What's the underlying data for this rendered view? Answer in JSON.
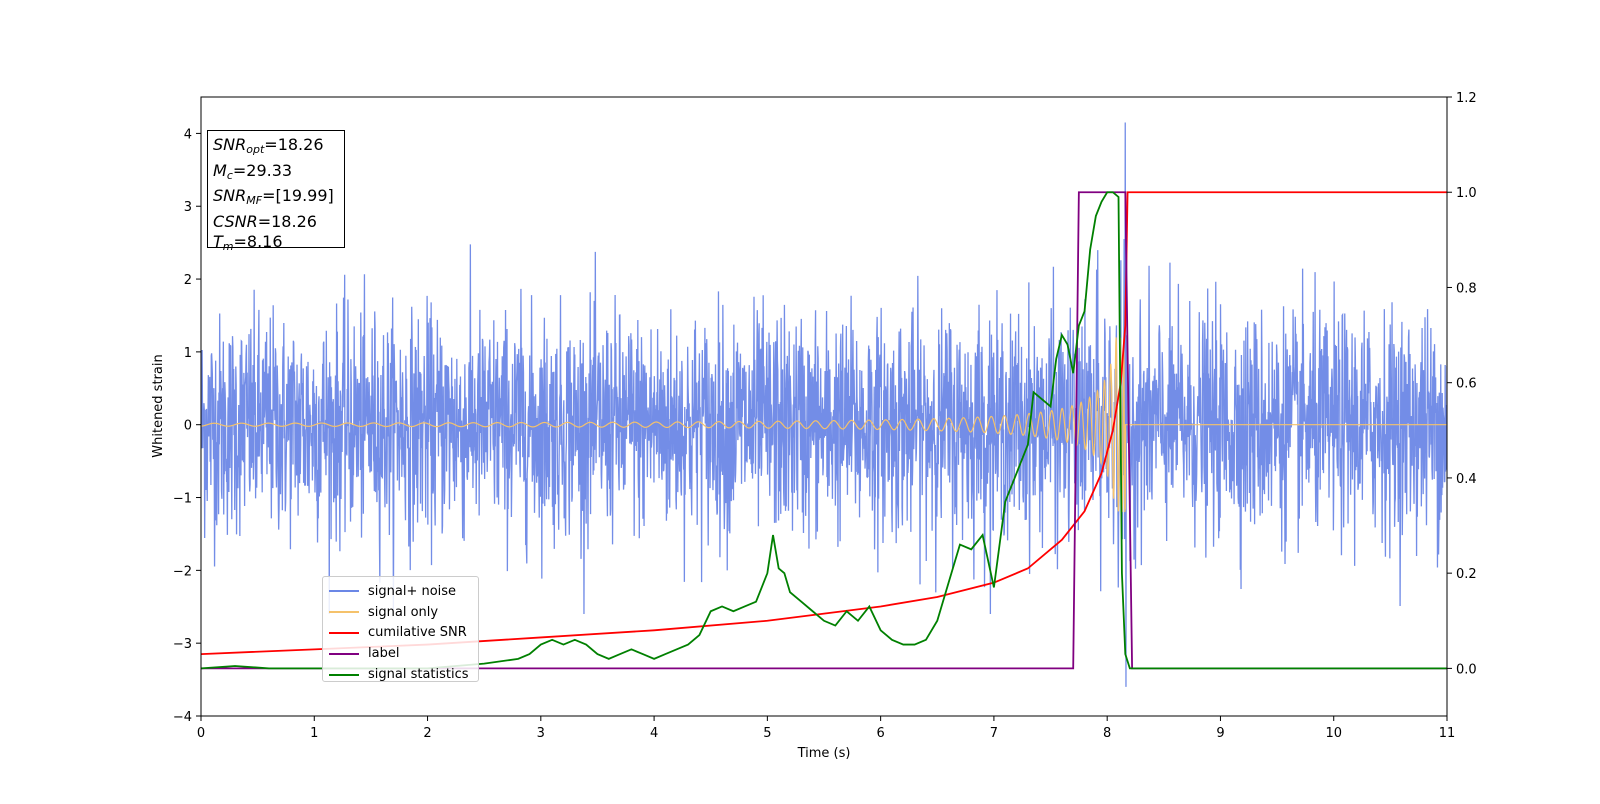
{
  "chart_data": {
    "type": "line",
    "title": "",
    "xlabel": "Time (s)",
    "ylabel": "Whitened strain",
    "xlim": [
      0,
      11
    ],
    "ylim": [
      -4,
      4.5
    ],
    "y2lim": [
      -0.1,
      1.2
    ],
    "xticks": [
      "0",
      "1",
      "2",
      "3",
      "4",
      "5",
      "6",
      "7",
      "8",
      "9",
      "10",
      "11"
    ],
    "yticks": [
      "−4",
      "−3",
      "−2",
      "−1",
      "0",
      "1",
      "2",
      "3",
      "4"
    ],
    "y2ticks": [
      "0.0",
      "0.2",
      "0.4",
      "0.6",
      "0.8",
      "1.0",
      "1.2"
    ],
    "grid": false,
    "legend_position": "lower-left",
    "annotation_box": {
      "snr_opt": {
        "sym": "SNR",
        "sub": "opt",
        "text": "=18.26"
      },
      "mc": {
        "sym": "M",
        "sub": "c",
        "text": "=29.33"
      },
      "snr_mf": {
        "sym": "SNR",
        "sub": "MF",
        "text": "=[19.99]"
      },
      "csnr": {
        "sym": "CSNR",
        "text": "=18.26"
      },
      "tm": {
        "sym": "T",
        "sub": "m",
        "text": "=8.16"
      }
    },
    "series": [
      {
        "name": "signal+ noise",
        "axis": "left",
        "color": "#6b87e6",
        "description_values": {
          "amplitude_envelope": [
            -2.5,
            2.5
          ],
          "spike_max": 4.15,
          "spike_min": -3.6,
          "spike_time": 8.16
        }
      },
      {
        "name": "signal only",
        "axis": "left",
        "color": "#f5c26b",
        "chirp": {
          "t_start": 0,
          "t_merger": 8.16,
          "amp_start": 0.02,
          "amp_peak": 1.2
        }
      },
      {
        "name": "cumilative SNR",
        "axis": "right",
        "color": "#ff0000",
        "x": [
          0,
          1,
          2,
          3,
          4,
          5,
          5.5,
          6,
          6.5,
          7,
          7.3,
          7.6,
          7.8,
          7.95,
          8.05,
          8.12,
          8.16,
          8.18,
          11
        ],
        "y": [
          0.03,
          0.04,
          0.05,
          0.065,
          0.08,
          0.1,
          0.115,
          0.13,
          0.15,
          0.18,
          0.21,
          0.27,
          0.33,
          0.41,
          0.5,
          0.6,
          0.72,
          1.0,
          1.0
        ]
      },
      {
        "name": "label",
        "axis": "right",
        "color": "#800080",
        "x": [
          0,
          7.7,
          7.75,
          8.16,
          8.22,
          11
        ],
        "y": [
          0,
          0,
          1,
          1,
          0,
          0
        ]
      },
      {
        "name": "signal statistics",
        "axis": "right",
        "color": "#008000",
        "x": [
          0,
          0.3,
          0.6,
          1,
          1.5,
          2,
          2.5,
          2.8,
          2.9,
          3.0,
          3.1,
          3.2,
          3.3,
          3.4,
          3.5,
          3.6,
          3.7,
          3.8,
          3.9,
          4.0,
          4.1,
          4.2,
          4.3,
          4.4,
          4.5,
          4.6,
          4.7,
          4.8,
          4.9,
          5.0,
          5.05,
          5.1,
          5.15,
          5.2,
          5.3,
          5.4,
          5.5,
          5.6,
          5.7,
          5.8,
          5.9,
          6.0,
          6.1,
          6.2,
          6.3,
          6.4,
          6.5,
          6.6,
          6.7,
          6.8,
          6.9,
          7.0,
          7.1,
          7.2,
          7.3,
          7.35,
          7.4,
          7.45,
          7.5,
          7.55,
          7.6,
          7.65,
          7.7,
          7.75,
          7.8,
          7.85,
          7.9,
          7.95,
          8.0,
          8.05,
          8.1,
          8.13,
          8.16,
          8.2,
          8.25,
          8.3,
          11
        ],
        "y": [
          0,
          0.005,
          0,
          0,
          0,
          0,
          0.01,
          0.02,
          0.03,
          0.05,
          0.06,
          0.05,
          0.06,
          0.05,
          0.03,
          0.02,
          0.03,
          0.04,
          0.03,
          0.02,
          0.03,
          0.04,
          0.05,
          0.07,
          0.12,
          0.13,
          0.12,
          0.13,
          0.14,
          0.2,
          0.28,
          0.21,
          0.2,
          0.16,
          0.14,
          0.12,
          0.1,
          0.09,
          0.12,
          0.1,
          0.13,
          0.08,
          0.06,
          0.05,
          0.05,
          0.06,
          0.1,
          0.18,
          0.26,
          0.25,
          0.28,
          0.17,
          0.35,
          0.41,
          0.47,
          0.58,
          0.57,
          0.56,
          0.55,
          0.65,
          0.7,
          0.68,
          0.62,
          0.72,
          0.75,
          0.88,
          0.95,
          0.98,
          1.0,
          1.0,
          0.99,
          0.2,
          0.03,
          0.0,
          0,
          0,
          0
        ]
      }
    ]
  }
}
